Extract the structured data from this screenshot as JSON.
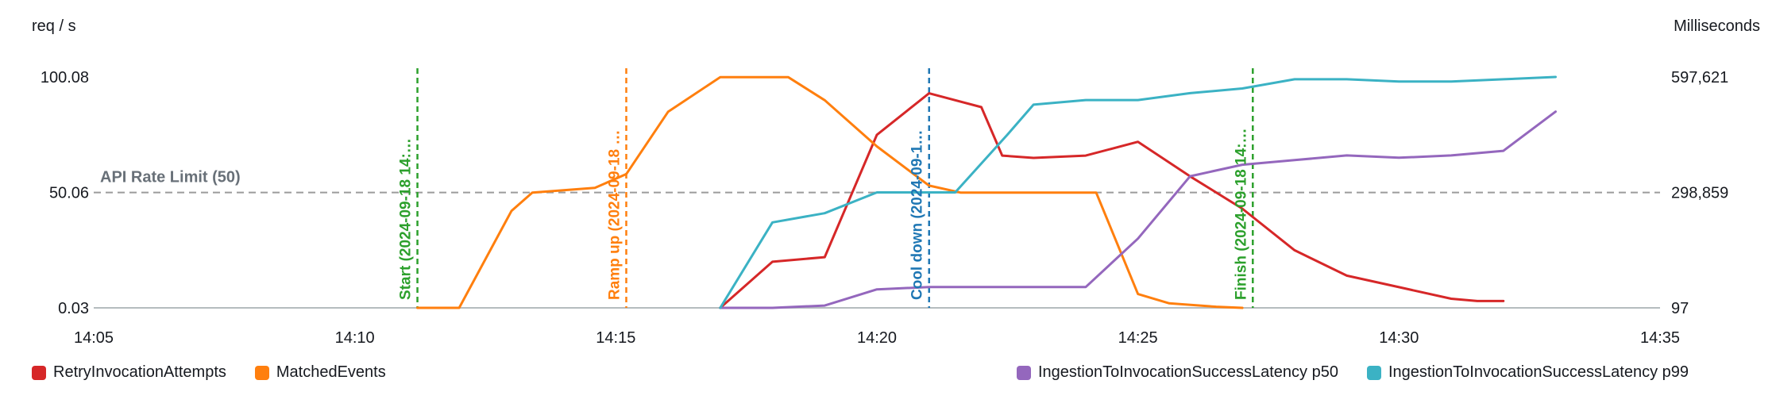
{
  "chart_data": {
    "type": "line",
    "title": "",
    "x_axis": {
      "tick_labels": [
        "14:05",
        "14:10",
        "14:15",
        "14:20",
        "14:25",
        "14:30",
        "14:35"
      ],
      "start": "14:05",
      "end": "14:35",
      "minutes_span": 30
    },
    "left_axis": {
      "unit": "req / s",
      "min": 0.03,
      "max": 100.08,
      "tick_labels": [
        "100.08",
        "50.06",
        "0.03"
      ]
    },
    "right_axis": {
      "unit": "Milliseconds",
      "min": 97,
      "max": 597621,
      "tick_labels": [
        "597,621",
        "298,859",
        "97"
      ]
    },
    "horizontal_annotation": {
      "label": "API Rate Limit (50)",
      "value": 50,
      "line_color": "#9b9b9b",
      "label_color": "#687078"
    },
    "vertical_annotations": [
      {
        "label": "Start (2024-09-18 14:…",
        "color": "#2ca02c",
        "time_min": 6.2
      },
      {
        "label": "Ramp up (2024-09-18 …",
        "color": "#ff7f0e",
        "time_min": 10.2
      },
      {
        "label": "Cool down (2024-09-1…",
        "color": "#1f77b4",
        "time_min": 16
      },
      {
        "label": "Finish (2024-09-18 14:…",
        "color": "#2ca02c",
        "time_min": 22.2
      }
    ],
    "series": [
      {
        "name": "RetryInvocationAttempts",
        "color": "#d62728",
        "axis": "left",
        "unit": "req / s",
        "points": [
          [
            12,
            0.03
          ],
          [
            13,
            20
          ],
          [
            14,
            22
          ],
          [
            15,
            75
          ],
          [
            16,
            93
          ],
          [
            17,
            87
          ],
          [
            17.4,
            66
          ],
          [
            18,
            65
          ],
          [
            19,
            66
          ],
          [
            20,
            72
          ],
          [
            21,
            57
          ],
          [
            22,
            43
          ],
          [
            23,
            25
          ],
          [
            24,
            14
          ],
          [
            25,
            9
          ],
          [
            26,
            4
          ],
          [
            26.5,
            3
          ],
          [
            27,
            3
          ]
        ]
      },
      {
        "name": "MatchedEvents",
        "color": "#ff7f0e",
        "axis": "left",
        "unit": "req / s",
        "points": [
          [
            6.2,
            0.03
          ],
          [
            7,
            0.03
          ],
          [
            8,
            42
          ],
          [
            8.4,
            50
          ],
          [
            9.6,
            52
          ],
          [
            10.2,
            58
          ],
          [
            11,
            85
          ],
          [
            12,
            100
          ],
          [
            13.3,
            100
          ],
          [
            14,
            90
          ],
          [
            15,
            70
          ],
          [
            16,
            53
          ],
          [
            16.6,
            50
          ],
          [
            19.2,
            50
          ],
          [
            20,
            6
          ],
          [
            20.6,
            2
          ],
          [
            21.5,
            0.5
          ],
          [
            22,
            0.03
          ]
        ]
      },
      {
        "name": "IngestionToInvocationSuccessLatency p50",
        "color": "#9467bd",
        "axis": "right",
        "unit": "Milliseconds",
        "points": [
          [
            12,
            97
          ],
          [
            13,
            97
          ],
          [
            14,
            6072
          ],
          [
            15,
            47899
          ],
          [
            16,
            53874
          ],
          [
            19,
            53874
          ],
          [
            20,
            179354
          ],
          [
            21,
            340686
          ],
          [
            22,
            370562
          ],
          [
            23,
            382512
          ],
          [
            24,
            394463
          ],
          [
            25,
            388488
          ],
          [
            26,
            394463
          ],
          [
            27,
            406413
          ],
          [
            28,
            507992
          ]
        ]
      },
      {
        "name": "IngestionToInvocationSuccessLatency p99",
        "color": "#3bb2c4",
        "axis": "right",
        "unit": "Milliseconds",
        "points": [
          [
            12,
            97
          ],
          [
            13,
            221181
          ],
          [
            14,
            245082
          ],
          [
            15,
            298859
          ],
          [
            16.5,
            298859
          ],
          [
            17.5,
            448240
          ],
          [
            18,
            525918
          ],
          [
            19,
            537869
          ],
          [
            20,
            537869
          ],
          [
            21,
            555794
          ],
          [
            22,
            567745
          ],
          [
            23,
            591646
          ],
          [
            24,
            591646
          ],
          [
            25,
            585671
          ],
          [
            26,
            585671
          ],
          [
            27,
            591646
          ],
          [
            28,
            597621
          ]
        ]
      }
    ]
  }
}
